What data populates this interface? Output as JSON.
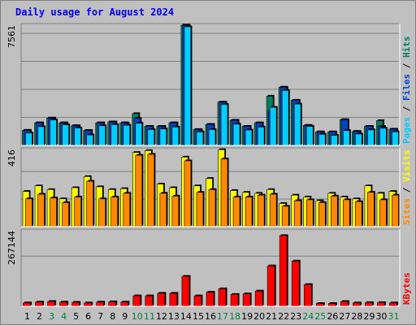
{
  "title": "Daily usage for August 2024",
  "colors": {
    "pages": "#00ccff",
    "files": "#0044cc",
    "hits": "#008060",
    "sites": "#ff8800",
    "visits": "#ffff00",
    "kbytes": "#ff0000",
    "plot_bg": "#c0c0c0",
    "weekend_day": "#008040",
    "weekday": "#000000"
  },
  "chart_data": [
    {
      "type": "bar",
      "panel": "hits-files-pages",
      "ymax_label": "7561",
      "ylim": [
        0,
        7561
      ],
      "right_label_parts": [
        {
          "text": "Pages",
          "color": "#00ccff"
        },
        {
          "text": " / ",
          "color": "#000000"
        },
        {
          "text": "Files",
          "color": "#0044cc"
        },
        {
          "text": " / ",
          "color": "#000000"
        },
        {
          "text": "Hits",
          "color": "#008060"
        }
      ],
      "categories": [
        "1",
        "2",
        "3",
        "4",
        "5",
        "6",
        "7",
        "8",
        "9",
        "10",
        "11",
        "12",
        "13",
        "14",
        "15",
        "16",
        "17",
        "18",
        "19",
        "20",
        "21",
        "22",
        "23",
        "24",
        "25",
        "26",
        "27",
        "28",
        "29",
        "30",
        "31"
      ],
      "series": [
        {
          "name": "Hits",
          "values": [
            950,
            1420,
            1720,
            1420,
            1240,
            940,
            1420,
            1480,
            1420,
            2000,
            1200,
            1200,
            1420,
            7561,
            1000,
            1320,
            2720,
            1580,
            1200,
            1420,
            3100,
            3660,
            2840,
            1260,
            850,
            850,
            1620,
            880,
            1200,
            1560,
            1020
          ]
        },
        {
          "name": "Files",
          "values": [
            950,
            1420,
            1720,
            1420,
            1240,
            940,
            1420,
            1480,
            1420,
            1700,
            1200,
            1200,
            1420,
            7561,
            1000,
            1320,
            2720,
            1580,
            1200,
            1420,
            2200,
            3660,
            2840,
            1260,
            850,
            850,
            1620,
            880,
            1200,
            1200,
            1020
          ]
        },
        {
          "name": "Pages",
          "values": [
            780,
            1180,
            1600,
            1300,
            1100,
            660,
            1240,
            1310,
            1270,
            1400,
            1000,
            1040,
            1160,
            7460,
            850,
            1000,
            2580,
            1340,
            970,
            1160,
            2400,
            3460,
            2600,
            1200,
            700,
            640,
            940,
            720,
            980,
            1080,
            860
          ]
        }
      ]
    },
    {
      "type": "bar",
      "panel": "visits-sites",
      "ymax_label": "416",
      "ylim": [
        0,
        416
      ],
      "right_label_parts": [
        {
          "text": "Sites",
          "color": "#ff8800"
        },
        {
          "text": " / ",
          "color": "#000000"
        },
        {
          "text": "Visits",
          "color": "#ffff00"
        }
      ],
      "categories": [
        "1",
        "2",
        "3",
        "4",
        "5",
        "6",
        "7",
        "8",
        "9",
        "10",
        "11",
        "12",
        "13",
        "14",
        "15",
        "16",
        "17",
        "18",
        "19",
        "20",
        "21",
        "22",
        "23",
        "24",
        "25",
        "26",
        "27",
        "28",
        "29",
        "30",
        "31"
      ],
      "series": [
        {
          "name": "Visits",
          "values": [
            190,
            220,
            200,
            150,
            210,
            270,
            215,
            200,
            205,
            400,
            410,
            230,
            210,
            375,
            220,
            260,
            415,
            195,
            185,
            180,
            200,
            125,
            170,
            160,
            140,
            180,
            160,
            150,
            220,
            180,
            190
          ]
        },
        {
          "name": "Sites",
          "values": [
            150,
            175,
            155,
            130,
            160,
            245,
            150,
            160,
            180,
            385,
            390,
            180,
            165,
            355,
            185,
            200,
            365,
            160,
            160,
            170,
            175,
            110,
            140,
            145,
            130,
            165,
            145,
            135,
            185,
            145,
            170
          ]
        }
      ]
    },
    {
      "type": "bar",
      "panel": "kbytes",
      "ymax_label": "267144",
      "ylim": [
        0,
        267144
      ],
      "right_label_parts": [
        {
          "text": "KBytes",
          "color": "#ff0000"
        }
      ],
      "categories": [
        "1",
        "2",
        "3",
        "4",
        "5",
        "6",
        "7",
        "8",
        "9",
        "10",
        "11",
        "12",
        "13",
        "14",
        "15",
        "16",
        "17",
        "18",
        "19",
        "20",
        "21",
        "22",
        "23",
        "24",
        "25",
        "26",
        "27",
        "28",
        "29",
        "30",
        "31"
      ],
      "series": [
        {
          "name": "KBytes",
          "values": [
            12000,
            15000,
            17000,
            15000,
            14000,
            12000,
            15000,
            16000,
            15000,
            37000,
            37000,
            46000,
            46000,
            106000,
            37000,
            50000,
            62000,
            42000,
            44000,
            54000,
            143000,
            250000,
            160000,
            77000,
            10000,
            10000,
            17000,
            12000,
            13000,
            13000,
            12000
          ]
        }
      ]
    }
  ]
}
